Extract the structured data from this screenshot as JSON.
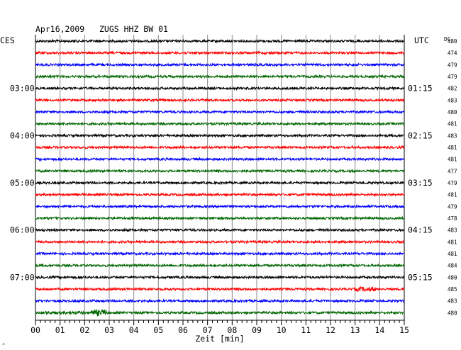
{
  "header": {
    "title": "Apr16,2009   ZUGS HHZ BW 01",
    "left_label": "CES",
    "right_label": "UTC",
    "dc_label": "DC"
  },
  "footer": {
    "xlabel": "Zeit [min]",
    "corner_mark": "^"
  },
  "colors": {
    "trace_cycle": [
      "#000000",
      "#ff0000",
      "#0000ff",
      "#006600"
    ],
    "grid": "#888888",
    "axis": "#000000",
    "text": "#000000"
  },
  "chart_data": {
    "type": "line",
    "title": "Apr16,2009   ZUGS HHZ BW 01",
    "xlabel": "Zeit [min]",
    "ylabel": "",
    "xlim": [
      0,
      15
    ],
    "x_ticks": [
      "00",
      "01",
      "02",
      "03",
      "04",
      "05",
      "06",
      "07",
      "08",
      "09",
      "10",
      "11",
      "12",
      "13",
      "14",
      "15"
    ],
    "grid": true,
    "trace_count": 24,
    "trace_colors": [
      "black",
      "red",
      "blue",
      "green"
    ],
    "left_time_labels": [
      {
        "trace": 4,
        "label": "03:00"
      },
      {
        "trace": 8,
        "label": "04:00"
      },
      {
        "trace": 12,
        "label": "05:00"
      },
      {
        "trace": 16,
        "label": "06:00"
      },
      {
        "trace": 20,
        "label": "07:00"
      }
    ],
    "right_time_labels": [
      {
        "trace": 4,
        "label": "01:15"
      },
      {
        "trace": 8,
        "label": "02:15"
      },
      {
        "trace": 12,
        "label": "03:15"
      },
      {
        "trace": 16,
        "label": "04:15"
      },
      {
        "trace": 20,
        "label": "05:15"
      }
    ],
    "dc_values": [
      "480",
      "474",
      "479",
      "479",
      "482",
      "483",
      "480",
      "481",
      "483",
      "481",
      "481",
      "477",
      "479",
      "481",
      "479",
      "478",
      "483",
      "481",
      "481",
      "484",
      "480",
      "485",
      "483",
      "480"
    ]
  }
}
